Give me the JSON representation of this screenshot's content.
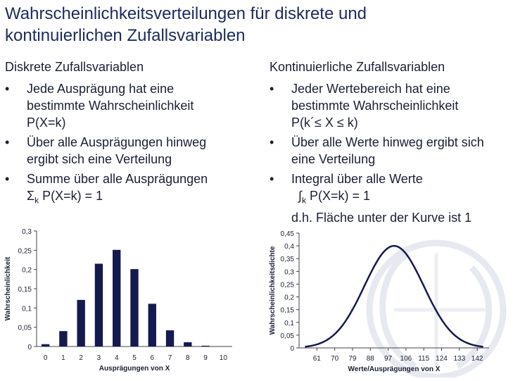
{
  "title": [
    "Wahrscheinlichkeitsverteilungen für diskrete und",
    "kontinuierlichen Zufallsvariablen"
  ],
  "left": {
    "heading": "Diskrete Zufallsvariablen",
    "bullet_symbol": "•",
    "bullets": [
      [
        "Jede Ausprägung hat eine",
        "bestimmte Wahrscheinlichkeit",
        "P(X=k)"
      ],
      [
        "Über alle Ausprägungen hinweg",
        "ergibt sich eine Verteilung"
      ],
      [
        "Summe über alle Ausprägungen"
      ]
    ],
    "sum_symbol": "Σ",
    "sum_index": "k",
    "sum_expr": " P(X=k) = 1"
  },
  "right": {
    "heading": "Kontinuierliche Zufallsvariablen",
    "bullets": [
      [
        "Jeder Wertebereich hat eine",
        "bestimmte Wahrscheinlichkeit",
        "P(k´≤ X ≤ k)"
      ],
      [
        "Über alle Werte hinweg ergibt sich",
        "eine Verteilung"
      ],
      [
        "Integral über alle Werte"
      ]
    ],
    "integral_symbol": "∫",
    "integral_index": "k",
    "integral_expr": " P(X=k) = 1",
    "area_note": "d.h. Fläche unter der Kurve ist 1"
  },
  "chart_data": [
    {
      "type": "bar",
      "categories": [
        "0",
        "1",
        "2",
        "3",
        "4",
        "5",
        "6",
        "7",
        "8",
        "9",
        "10"
      ],
      "values": [
        0.006,
        0.04,
        0.121,
        0.215,
        0.251,
        0.201,
        0.111,
        0.042,
        0.011,
        0.002,
        0.0001
      ],
      "xlabel": "Ausprägungen von X",
      "ylabel": "Wahrscheinlichkeit",
      "ylim": [
        0,
        0.3
      ],
      "yticks": [
        "0",
        "0,05",
        "0,1",
        "0,15",
        "0,2",
        "0,25",
        "0,3"
      ],
      "bar_color": "#141a4d",
      "grid": false
    },
    {
      "type": "line",
      "xlabel": "Werte/Ausprägungen von X",
      "ylabel": "Wahrscheinlichkeitsdichte",
      "xticks": [
        "61",
        "70",
        "79",
        "88",
        "97",
        "106",
        "115",
        "124",
        "133",
        "142"
      ],
      "yticks": [
        "0",
        "0,05",
        "0,1",
        "0,15",
        "0,2",
        "0,25",
        "0,3",
        "0,35",
        "0,4",
        "0,45"
      ],
      "ylim": [
        0,
        0.45
      ],
      "curve": {
        "mean": 100,
        "peak_density": 0.4,
        "sd_in_x_units": 15,
        "x_start": 55,
        "x_end": 145
      },
      "line_color": "#141a4d",
      "grid": false
    }
  ]
}
